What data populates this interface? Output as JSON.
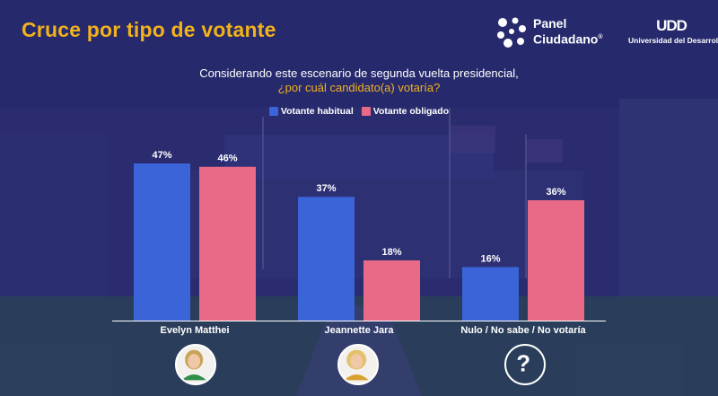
{
  "header": {
    "title": "Cruce por tipo de votante",
    "logo_panel": {
      "line1": "Panel",
      "line2": "Ciudadano",
      "mark": "®"
    },
    "logo_udd": {
      "mark": "UDD",
      "subtitle": "Universidad del Desarrollo"
    }
  },
  "question": {
    "line1": "Considerando este escenario de segunda vuelta presidencial,",
    "line2": "¿por cuál candidato(a) votaría?"
  },
  "colors": {
    "title": "#f2b21b",
    "habitual": "#3a64d8",
    "obligado": "#e86a87",
    "axis": "#ffffff"
  },
  "chart_data": {
    "type": "bar",
    "categories": [
      "Evelyn Matthei",
      "Jeannette Jara",
      "Nulo / No sabe / No votaría"
    ],
    "series": [
      {
        "name": "Votante habitual",
        "values": [
          47,
          37,
          16
        ],
        "labels": [
          "47%",
          "37%",
          "16%"
        ]
      },
      {
        "name": "Votante obligado",
        "values": [
          46,
          18,
          36
        ],
        "labels": [
          "46%",
          "18%",
          "36%"
        ]
      }
    ],
    "ylim": [
      0,
      47
    ],
    "legend": "top-center",
    "grid": false
  },
  "icons": [
    "matthei-avatar-icon",
    "jara-avatar-icon",
    "question-mark-icon"
  ]
}
